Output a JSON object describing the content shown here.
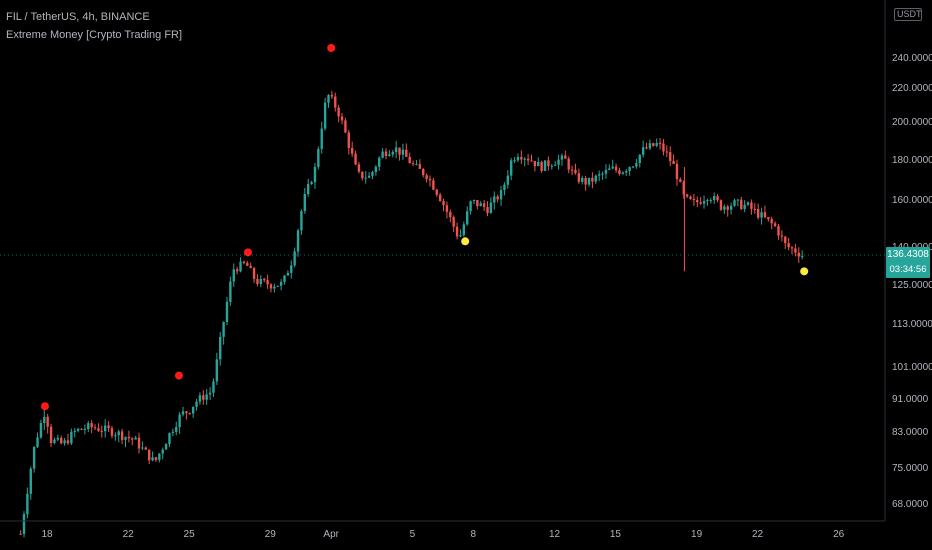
{
  "header": {
    "symbol_line": "FIL / TetherUS, 4h, BINANCE",
    "indicator_line": "Extreme Money [Crypto Trading FR]"
  },
  "currency_badge": "USDT",
  "price_tag": {
    "price": "136.4308",
    "countdown": "03:34:56",
    "value": 136.43
  },
  "colors": {
    "up": "#26a69a",
    "down": "#ef5350",
    "sell_dot": "#ff1a1a",
    "buy_dot": "#ffeb3b",
    "axis_text": "#b2b5be",
    "background": "#000000"
  },
  "chart_data": {
    "type": "candlestick",
    "title": "FIL / TetherUS, 4h, BINANCE",
    "indicator": "Extreme Money [Crypto Trading FR]",
    "y_axis": {
      "ticks": [
        "240.0000",
        "220.0000",
        "200.0000",
        "180.0000",
        "160.0000",
        "140.0000",
        "125.0000",
        "113.0000",
        "101.0000",
        "91.0000",
        "83.0000",
        "75.0000",
        "68.0000"
      ],
      "tick_values": [
        240,
        220,
        200,
        180,
        160,
        140,
        125,
        113,
        101,
        91,
        83,
        75,
        68
      ]
    },
    "x_axis": {
      "ticks": [
        "18",
        "22",
        "25",
        "29",
        "Apr",
        "5",
        "8",
        "12",
        "15",
        "19",
        "22",
        "26"
      ],
      "tick_days": [
        18,
        22,
        25,
        29,
        32,
        36,
        39,
        43,
        46,
        50,
        53,
        57
      ]
    },
    "price_path": [
      [
        16.7,
        62
      ],
      [
        17.4,
        80
      ],
      [
        17.9,
        88
      ],
      [
        18.2,
        81
      ],
      [
        18.8,
        80
      ],
      [
        19.4,
        83
      ],
      [
        20.1,
        84
      ],
      [
        21.2,
        83
      ],
      [
        22.3,
        81
      ],
      [
        23.3,
        76
      ],
      [
        24.0,
        82
      ],
      [
        24.6,
        87
      ],
      [
        25.0,
        88
      ],
      [
        25.3,
        90
      ],
      [
        26.1,
        93
      ],
      [
        26.6,
        110
      ],
      [
        27.2,
        131
      ],
      [
        27.8,
        133
      ],
      [
        28.3,
        126
      ],
      [
        29.0,
        125
      ],
      [
        29.6,
        125
      ],
      [
        30.1,
        135
      ],
      [
        30.6,
        158
      ],
      [
        31.2,
        175
      ],
      [
        31.8,
        216
      ],
      [
        32.3,
        207
      ],
      [
        32.8,
        190
      ],
      [
        33.3,
        172
      ],
      [
        33.9,
        171
      ],
      [
        34.5,
        183
      ],
      [
        35.1,
        186
      ],
      [
        35.6,
        182
      ],
      [
        36.1,
        176
      ],
      [
        36.7,
        172
      ],
      [
        37.3,
        162
      ],
      [
        37.9,
        151
      ],
      [
        38.3,
        143
      ],
      [
        38.9,
        159
      ],
      [
        39.7,
        156
      ],
      [
        40.4,
        163
      ],
      [
        40.9,
        180
      ],
      [
        41.2,
        183
      ],
      [
        41.8,
        180
      ],
      [
        42.3,
        176
      ],
      [
        43.0,
        179
      ],
      [
        43.5,
        180
      ],
      [
        44.0,
        171
      ],
      [
        44.6,
        168
      ],
      [
        45.3,
        172
      ],
      [
        45.8,
        175
      ],
      [
        46.3,
        174
      ],
      [
        46.9,
        178
      ],
      [
        47.4,
        185
      ],
      [
        48.1,
        188
      ],
      [
        48.5,
        183
      ],
      [
        48.9,
        176
      ],
      [
        49.4,
        160
      ],
      [
        49.9,
        158
      ],
      [
        50.6,
        162
      ],
      [
        51.2,
        157
      ],
      [
        51.9,
        158
      ],
      [
        52.5,
        157
      ],
      [
        53.3,
        152
      ],
      [
        53.9,
        148
      ],
      [
        54.4,
        140
      ],
      [
        54.9,
        138
      ],
      [
        55.2,
        136.4
      ]
    ],
    "signals": [
      {
        "type": "sell",
        "color": "red",
        "day": 17.9,
        "price": 89
      },
      {
        "type": "sell",
        "color": "red",
        "day": 24.5,
        "price": 98
      },
      {
        "type": "sell",
        "color": "red",
        "day": 27.9,
        "price": 137.5
      },
      {
        "type": "sell",
        "color": "red",
        "day": 32.0,
        "price": 246
      },
      {
        "type": "buy",
        "color": "yellow",
        "day": 38.6,
        "price": 142
      },
      {
        "type": "buy",
        "color": "yellow",
        "day": 55.3,
        "price": 130
      }
    ],
    "last_price": 136.4308,
    "grid": false
  }
}
